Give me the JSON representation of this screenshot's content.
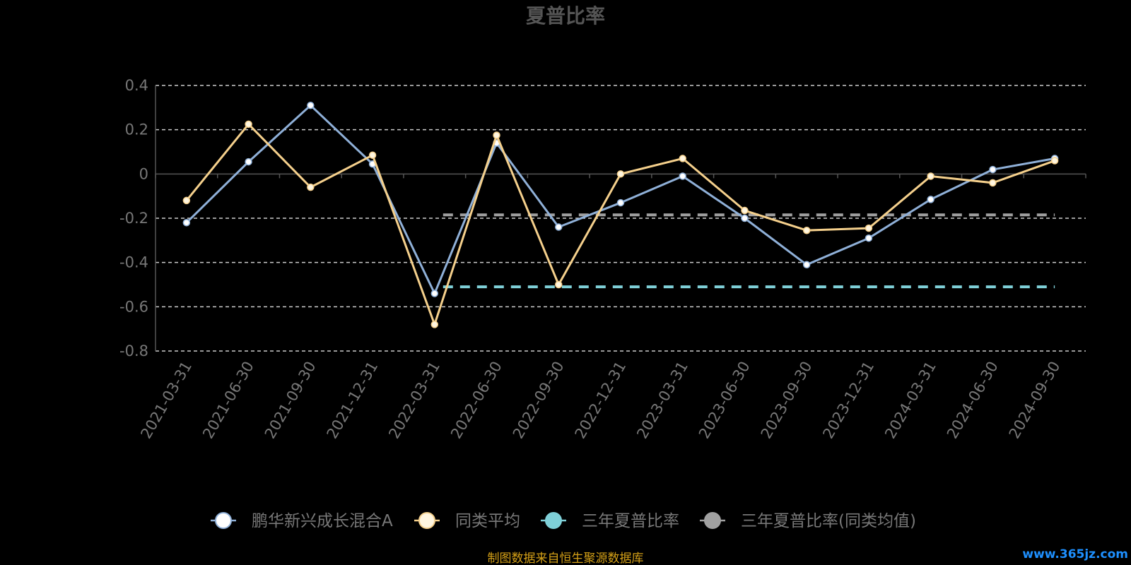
{
  "chart_data": {
    "type": "line",
    "title": "夏普比率",
    "categories": [
      "2021-03-31",
      "2021-06-30",
      "2021-09-30",
      "2021-12-31",
      "2022-03-31",
      "2022-06-30",
      "2022-09-30",
      "2022-12-31",
      "2023-03-31",
      "2023-06-30",
      "2023-09-30",
      "2023-12-31",
      "2024-03-31",
      "2024-06-30",
      "2024-09-30"
    ],
    "ylim": [
      -0.8,
      0.4
    ],
    "yticks": [
      0.4,
      0.2,
      0,
      -0.2,
      -0.4,
      -0.6,
      -0.8
    ],
    "ytick_labels": [
      "0.4",
      "0.2",
      "0",
      "-0.2",
      "-0.4",
      "-0.6",
      "-0.8"
    ],
    "grid": true,
    "legend_position": "bottom",
    "series": [
      {
        "name": "鹏华新兴成长混合A",
        "color": "#8fb0d8",
        "marker_color": "#ffffff",
        "values": [
          -0.22,
          0.055,
          0.31,
          0.045,
          -0.54,
          0.14,
          -0.24,
          -0.13,
          -0.01,
          -0.2,
          -0.41,
          -0.29,
          -0.115,
          0.02,
          0.07
        ]
      },
      {
        "name": "同类平均",
        "color": "#f5d08c",
        "marker_color": "#fff6e0",
        "values": [
          -0.12,
          0.225,
          -0.06,
          0.085,
          -0.68,
          0.175,
          -0.5,
          0.0,
          0.07,
          -0.165,
          -0.255,
          -0.245,
          -0.01,
          -0.04,
          0.06
        ]
      }
    ],
    "reference_lines": [
      {
        "name": "三年夏普比率",
        "color": "#7fd0d8",
        "value": -0.51,
        "from_index": 4,
        "to_index": 14
      },
      {
        "name": "三年夏普比率(同类均值)",
        "color": "#a0a0a0",
        "value": -0.185,
        "from_index": 4,
        "to_index": 14
      }
    ],
    "legend": [
      {
        "name": "鹏华新兴成长混合A",
        "line_color": "#8fb0d8",
        "dot_color": "#ffffff"
      },
      {
        "name": "同类平均",
        "line_color": "#f5d08c",
        "dot_color": "#fff6e0"
      },
      {
        "name": "三年夏普比率",
        "line_color": "#7fd0d8",
        "dot_color": "#7fd0d8"
      },
      {
        "name": "三年夏普比率(同类均值)",
        "line_color": "#a0a0a0",
        "dot_color": "#a0a0a0"
      }
    ]
  },
  "source_note": "制图数据来自恒生聚源数据库",
  "watermark": "www.365jz.com"
}
